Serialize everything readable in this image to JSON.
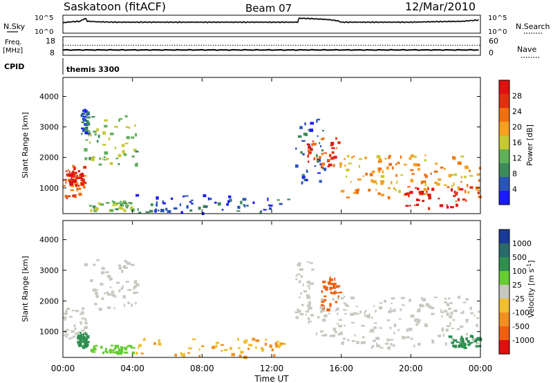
{
  "header": {
    "station": "Saskatoon (fitACF)",
    "beam": "Beam 07",
    "date": "12/Mar/2010"
  },
  "noise_panel": {
    "left_label": "N.Sky",
    "right_label": "N.Search",
    "left_ticks": [
      "10^5",
      "10^0"
    ],
    "right_ticks": [
      "10^5",
      "10^0"
    ]
  },
  "freq_panel": {
    "left_label_line1": "Freq.",
    "left_label_line2": "[MHz]",
    "left_ticks": [
      "18",
      "8"
    ],
    "right_ticks": [
      "60",
      "0"
    ],
    "right_label": "Nave"
  },
  "cpid": {
    "label": "CPID",
    "value": "themis 3300"
  },
  "x_axis": {
    "label": "Time UT",
    "ticks": [
      "00:00",
      "04:00",
      "08:00",
      "12:00",
      "16:00",
      "20:00",
      "00:00"
    ]
  },
  "colors": {
    "power": [
      "#1a1aff",
      "#2a55b8",
      "#3d8a5a",
      "#5fb05a",
      "#c8c832",
      "#f5a020",
      "#f07010",
      "#e03010",
      "#e01010"
    ],
    "velocity": [
      "#1a3a9a",
      "#2a6a6a",
      "#2f8f4f",
      "#66cc33",
      "#c8c8c0",
      "#f0c030",
      "#f09020",
      "#f06010",
      "#e01010"
    ]
  },
  "chart_data": [
    {
      "type": "line",
      "title": "N.Sky / N.Search",
      "x_range_hours": [
        0,
        24
      ],
      "yscale": "log",
      "ylim": [
        1,
        100000
      ],
      "x": [
        0.0,
        0.5,
        1.0,
        1.3,
        1.4,
        2.0,
        3.0,
        4.0,
        6.0,
        8.0,
        10.0,
        12.0,
        13.5,
        13.6,
        16.0,
        20.0,
        23.0,
        24.0
      ],
      "y": [
        1000,
        2000,
        3000,
        20000,
        3000,
        2000,
        1500,
        1500,
        1500,
        1500,
        1500,
        1500,
        1500,
        30000,
        1500,
        1500,
        3000,
        8000
      ]
    },
    {
      "type": "line",
      "title": "Freq / Nave",
      "x_range_hours": [
        0,
        24
      ],
      "series": [
        {
          "name": "Freq.",
          "ylim": [
            8,
            18
          ],
          "values_x": [
            0,
            24
          ],
          "values_y": [
            10.5,
            10.5
          ]
        },
        {
          "name": "Nave",
          "ylim": [
            0,
            60
          ],
          "values_x": [
            0,
            24
          ],
          "values_y": [
            33,
            33
          ]
        }
      ]
    },
    {
      "type": "heatmap",
      "title": "Power",
      "xlabel": "Time UT",
      "ylabel": "Slant Range [km]",
      "xlim_hours": [
        0,
        24
      ],
      "ylim": [
        180,
        4600
      ],
      "y_ticks": [
        1000,
        2000,
        3000,
        4000
      ],
      "colorbar": {
        "label": "Power [dB]",
        "ticks": [
          4,
          8,
          12,
          16,
          20,
          24,
          28
        ],
        "range": [
          0,
          32
        ]
      },
      "regions": [
        {
          "t0": 0.0,
          "t1": 1.2,
          "r0": 700,
          "r1": 1800,
          "value": 24
        },
        {
          "t0": 0.3,
          "t1": 1.1,
          "r0": 1100,
          "r1": 1600,
          "value": 30
        },
        {
          "t0": 1.2,
          "t1": 4.2,
          "r0": 1800,
          "r1": 3400,
          "value": 14
        },
        {
          "t0": 1.0,
          "t1": 1.4,
          "r0": 2800,
          "r1": 3600,
          "value": 6
        },
        {
          "t0": 1.5,
          "t1": 4.0,
          "r0": 300,
          "r1": 600,
          "value": 14
        },
        {
          "t0": 4.0,
          "t1": 13.0,
          "r0": 200,
          "r1": 800,
          "value": 6
        },
        {
          "t0": 13.3,
          "t1": 15.0,
          "r0": 1200,
          "r1": 3300,
          "value": 6
        },
        {
          "t0": 14.0,
          "t1": 15.8,
          "r0": 1700,
          "r1": 2700,
          "value": 26
        },
        {
          "t0": 15.8,
          "t1": 24.0,
          "r0": 700,
          "r1": 2100,
          "value": 20
        },
        {
          "t0": 19.5,
          "t1": 24.0,
          "r0": 350,
          "r1": 1100,
          "value": 28
        }
      ]
    },
    {
      "type": "heatmap",
      "title": "Velocity",
      "xlabel": "Time UT",
      "ylabel": "Slant Range [km]",
      "xlim_hours": [
        0,
        24
      ],
      "ylim": [
        180,
        4600
      ],
      "y_ticks": [
        1000,
        2000,
        3000,
        4000
      ],
      "colorbar": {
        "label": "Velocity [m s^-1]",
        "ticks": [
          1000,
          500,
          100,
          25,
          -25,
          -100,
          -500,
          -1000
        ]
      },
      "regions": [
        {
          "t0": 0.0,
          "t1": 1.3,
          "r0": 700,
          "r1": 1800,
          "value": 0
        },
        {
          "t0": 0.8,
          "t1": 1.4,
          "r0": 500,
          "r1": 1000,
          "value": 100
        },
        {
          "t0": 1.2,
          "t1": 4.2,
          "r0": 1700,
          "r1": 3400,
          "value": 0
        },
        {
          "t0": 1.5,
          "t1": 4.0,
          "r0": 300,
          "r1": 600,
          "value": 50
        },
        {
          "t0": 4.0,
          "t1": 13.0,
          "r0": 200,
          "r1": 800,
          "value": -100
        },
        {
          "t0": 13.3,
          "t1": 14.3,
          "r0": 1300,
          "r1": 3300,
          "value": 0
        },
        {
          "t0": 14.8,
          "t1": 16.0,
          "r0": 1700,
          "r1": 2800,
          "value": -500
        },
        {
          "t0": 14.5,
          "t1": 24.0,
          "r0": 500,
          "r1": 2200,
          "value": 0
        },
        {
          "t0": 22.0,
          "t1": 24.0,
          "r0": 500,
          "r1": 900,
          "value": 100
        }
      ]
    }
  ]
}
